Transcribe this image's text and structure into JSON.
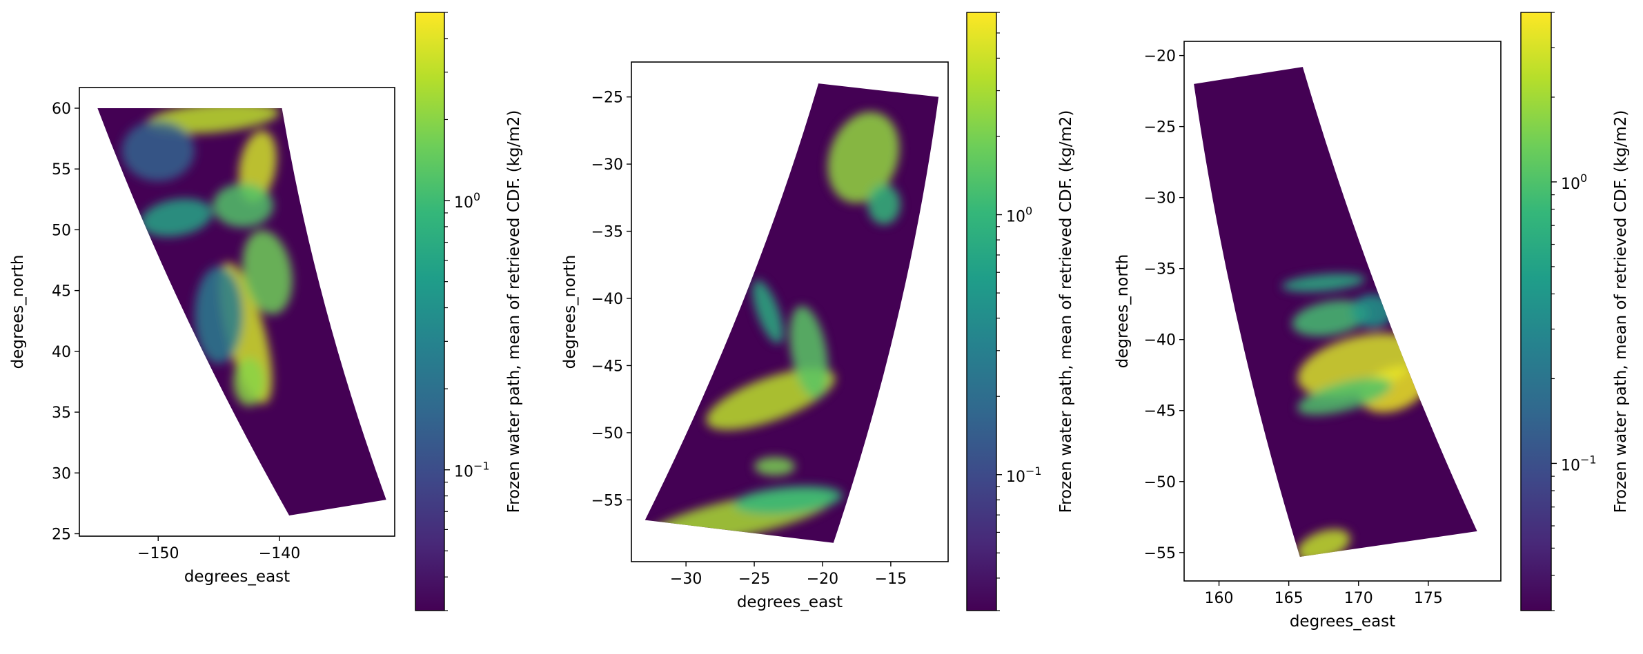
{
  "chart_data": [
    {
      "type": "heatmap",
      "xlabel": "degrees_east",
      "ylabel": "degrees_north",
      "xlim": [
        -156.5,
        -130.5
      ],
      "ylim": [
        24.8,
        61.7
      ],
      "xticks": [
        {
          "value": -150,
          "label": "−150"
        },
        {
          "value": -140,
          "label": "−140"
        }
      ],
      "yticks": [
        {
          "value": 25,
          "label": "25"
        },
        {
          "value": 30,
          "label": "30"
        },
        {
          "value": 35,
          "label": "35"
        },
        {
          "value": 40,
          "label": "40"
        },
        {
          "value": 45,
          "label": "45"
        },
        {
          "value": 50,
          "label": "50"
        },
        {
          "value": 55,
          "label": "55"
        },
        {
          "value": 60,
          "label": "60"
        }
      ],
      "swath": {
        "top_left": [
          -155,
          60
        ],
        "top_right": [
          -139.8,
          60
        ],
        "bottom_left": [
          -139.2,
          26.5
        ],
        "bottom_right": [
          -131.2,
          27.8
        ],
        "bow": 0.06
      },
      "features": [
        {
          "lon": -145.5,
          "lat": 59.2,
          "rx": 5.5,
          "ry": 1.2,
          "rot": -5,
          "value": 3.0
        },
        {
          "lon": -141.8,
          "lat": 55.2,
          "rx": 1.5,
          "ry": 3.0,
          "rot": 10,
          "value": 3.5
        },
        {
          "lon": -143.0,
          "lat": 52.0,
          "rx": 2.5,
          "ry": 1.8,
          "rot": 0,
          "value": 1.2
        },
        {
          "lon": -148.5,
          "lat": 51.0,
          "rx": 3.0,
          "ry": 1.5,
          "rot": -10,
          "value": 0.6
        },
        {
          "lon": -142.8,
          "lat": 41.5,
          "rx": 1.6,
          "ry": 6.0,
          "rot": -15,
          "value": 3.5
        },
        {
          "lon": -141.0,
          "lat": 46.5,
          "rx": 2.0,
          "ry": 3.5,
          "rot": -10,
          "value": 1.6
        },
        {
          "lon": -142.5,
          "lat": 37.5,
          "rx": 1.3,
          "ry": 2.0,
          "rot": 0,
          "value": 2.0
        },
        {
          "lon": -145.0,
          "lat": 43.0,
          "rx": 2.0,
          "ry": 4.0,
          "rot": 0,
          "value": 0.25
        },
        {
          "lon": -150.0,
          "lat": 56.5,
          "rx": 3.0,
          "ry": 2.5,
          "rot": 0,
          "value": 0.15
        }
      ],
      "colorbar": {
        "label": "Frozen water path, mean of retrieved CDF. (kg/m2)",
        "scale": "log",
        "range": [
          0.03,
          5.0
        ],
        "ticks": [
          {
            "value": 0.1,
            "label": "10",
            "exp": "−1"
          },
          {
            "value": 1,
            "label": "10",
            "exp": "0"
          }
        ]
      }
    },
    {
      "type": "heatmap",
      "xlabel": "degrees_east",
      "ylabel": "degrees_north",
      "xlim": [
        -34.0,
        -10.8
      ],
      "ylim": [
        -59.6,
        -22.4
      ],
      "xticks": [
        {
          "value": -30,
          "label": "−30"
        },
        {
          "value": -25,
          "label": "−25"
        },
        {
          "value": -20,
          "label": "−20"
        },
        {
          "value": -15,
          "label": "−15"
        }
      ],
      "yticks": [
        {
          "value": -25,
          "label": "−25"
        },
        {
          "value": -30,
          "label": "−30"
        },
        {
          "value": -35,
          "label": "−35"
        },
        {
          "value": -40,
          "label": "−40"
        },
        {
          "value": -45,
          "label": "−45"
        },
        {
          "value": -50,
          "label": "−50"
        },
        {
          "value": -55,
          "label": "−55"
        }
      ],
      "swath": {
        "top_left": [
          -20.3,
          -24.0
        ],
        "top_right": [
          -11.5,
          -25.0
        ],
        "bottom_left": [
          -33.0,
          -56.5
        ],
        "bottom_right": [
          -19.2,
          -58.2
        ],
        "bow": -0.07
      },
      "features": [
        {
          "lon": -17.0,
          "lat": -29.5,
          "rx": 2.5,
          "ry": 3.5,
          "rot": 20,
          "value": 2.5
        },
        {
          "lon": -15.5,
          "lat": -33.0,
          "rx": 1.2,
          "ry": 1.5,
          "rot": 0,
          "value": 1.0
        },
        {
          "lon": -23.8,
          "lat": -47.5,
          "rx": 5.0,
          "ry": 1.6,
          "rot": -20,
          "value": 3.5
        },
        {
          "lon": -21.0,
          "lat": -44.0,
          "rx": 1.3,
          "ry": 3.5,
          "rot": -10,
          "value": 1.5
        },
        {
          "lon": -23.5,
          "lat": -52.5,
          "rx": 1.5,
          "ry": 0.7,
          "rot": 0,
          "value": 2.0
        },
        {
          "lon": -26.0,
          "lat": -56.3,
          "rx": 7.0,
          "ry": 1.4,
          "rot": -12,
          "value": 3.0
        },
        {
          "lon": -22.5,
          "lat": -55.0,
          "rx": 4.0,
          "ry": 1.0,
          "rot": -5,
          "value": 1.0
        },
        {
          "lon": -24.0,
          "lat": -41.0,
          "rx": 0.8,
          "ry": 2.5,
          "rot": -20,
          "value": 0.8
        }
      ],
      "colorbar": {
        "label": "Frozen water path, mean of retrieved CDF. (kg/m2)",
        "scale": "log",
        "range": [
          0.03,
          6.0
        ],
        "ticks": [
          {
            "value": 0.1,
            "label": "10",
            "exp": "−1"
          },
          {
            "value": 1,
            "label": "10",
            "exp": "0"
          }
        ]
      }
    },
    {
      "type": "heatmap",
      "xlabel": "degrees_east",
      "ylabel": "degrees_north",
      "xlim": [
        157.5,
        180.2
      ],
      "ylim": [
        -57.0,
        -19.0
      ],
      "xticks": [
        {
          "value": 160,
          "label": "160"
        },
        {
          "value": 165,
          "label": "165"
        },
        {
          "value": 170,
          "label": "170"
        },
        {
          "value": 175,
          "label": "175"
        }
      ],
      "yticks": [
        {
          "value": -20,
          "label": "−20"
        },
        {
          "value": -25,
          "label": "−25"
        },
        {
          "value": -30,
          "label": "−30"
        },
        {
          "value": -35,
          "label": "−35"
        },
        {
          "value": -40,
          "label": "−40"
        },
        {
          "value": -45,
          "label": "−45"
        },
        {
          "value": -50,
          "label": "−50"
        },
        {
          "value": -55,
          "label": "−55"
        }
      ],
      "swath": {
        "top_left": [
          158.2,
          -22.0
        ],
        "top_right": [
          166.0,
          -20.8
        ],
        "bottom_left": [
          165.8,
          -55.3
        ],
        "bottom_right": [
          178.5,
          -53.5
        ],
        "bow": 0.06
      },
      "features": [
        {
          "lon": 170.0,
          "lat": -41.8,
          "rx": 4.5,
          "ry": 2.0,
          "rot": -15,
          "value": 3.0
        },
        {
          "lon": 172.5,
          "lat": -43.5,
          "rx": 2.5,
          "ry": 1.5,
          "rot": -20,
          "value": 3.5
        },
        {
          "lon": 168.0,
          "lat": -38.5,
          "rx": 2.8,
          "ry": 1.2,
          "rot": -10,
          "value": 0.9
        },
        {
          "lon": 167.5,
          "lat": -36.0,
          "rx": 3.0,
          "ry": 0.6,
          "rot": -5,
          "value": 0.6
        },
        {
          "lon": 169.0,
          "lat": -44.0,
          "rx": 3.5,
          "ry": 1.0,
          "rot": -15,
          "value": 1.0
        },
        {
          "lon": 167.5,
          "lat": -54.5,
          "rx": 2.0,
          "ry": 1.0,
          "rot": -20,
          "value": 2.5
        },
        {
          "lon": 171.0,
          "lat": -38.0,
          "rx": 1.5,
          "ry": 1.2,
          "rot": 0,
          "value": 0.4
        }
      ],
      "colorbar": {
        "label": "Frozen water path, mean of retrieved CDF. (kg/m2)",
        "scale": "log",
        "range": [
          0.03,
          4.0
        ],
        "ticks": [
          {
            "value": 0.1,
            "label": "10",
            "exp": "−1"
          },
          {
            "value": 1,
            "label": "10",
            "exp": "0"
          }
        ]
      }
    }
  ],
  "colors": {
    "background": "#440154",
    "viridis": [
      "#440154",
      "#482878",
      "#3e4989",
      "#31688e",
      "#26828e",
      "#1f9e89",
      "#35b779",
      "#6ece58",
      "#b5de2b",
      "#fde725"
    ]
  }
}
